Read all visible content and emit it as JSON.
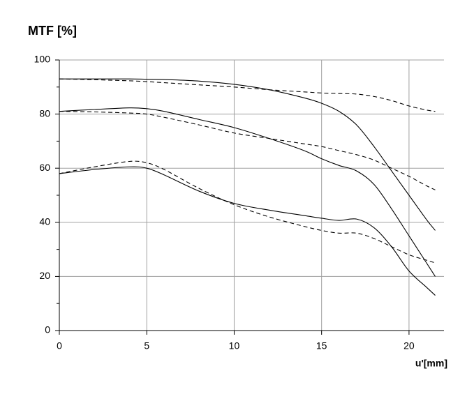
{
  "chart_data": {
    "type": "line",
    "title": "MTF [%]",
    "x_label": "u'[mm]",
    "x": [
      0,
      2,
      4,
      5,
      6,
      8,
      10,
      12,
      14,
      15,
      16,
      17,
      18,
      19,
      20,
      21,
      21.5
    ],
    "series": [
      {
        "color": "#000000",
        "dashed": false,
        "values": [
          93,
          93,
          93,
          92.9,
          92.8,
          92.2,
          91,
          89,
          86,
          84,
          81,
          76,
          68,
          59,
          50,
          41,
          37
        ]
      },
      {
        "color": "#000000",
        "dashed": true,
        "values": [
          93,
          92.7,
          92.3,
          92,
          91.6,
          90.8,
          90,
          89,
          88.2,
          87.8,
          87.6,
          87.4,
          86.5,
          85,
          83,
          81.5,
          81
        ]
      },
      {
        "color": "#000000",
        "dashed": false,
        "values": [
          81,
          81.7,
          82.3,
          82,
          81,
          78,
          75,
          71,
          66.5,
          63.5,
          61,
          59,
          54,
          45,
          35,
          25,
          20
        ]
      },
      {
        "color": "#000000",
        "dashed": true,
        "values": [
          81,
          80.8,
          80.4,
          80,
          78.8,
          76,
          73,
          71,
          69,
          68,
          66.5,
          65,
          63,
          60,
          57,
          53.5,
          52
        ]
      },
      {
        "color": "#000000",
        "dashed": false,
        "values": [
          58,
          59.5,
          60.5,
          60,
          57.5,
          51.5,
          47,
          44.5,
          42.5,
          41.5,
          40.7,
          41.2,
          38,
          31,
          22,
          16,
          13
        ]
      },
      {
        "color": "#000000",
        "dashed": true,
        "values": [
          58,
          60.5,
          62.5,
          62,
          59.5,
          52.5,
          46.5,
          42,
          38.5,
          37,
          36,
          36,
          34,
          31,
          28,
          26,
          25
        ]
      }
    ],
    "xlim": [
      0,
      22
    ],
    "xticks": [
      0,
      5,
      10,
      15,
      20
    ],
    "ylim": [
      0,
      100
    ],
    "yticks": [
      0,
      20,
      40,
      60,
      80,
      100
    ],
    "yminorticks": [
      10,
      30,
      50,
      70,
      90
    ],
    "grid": true
  }
}
